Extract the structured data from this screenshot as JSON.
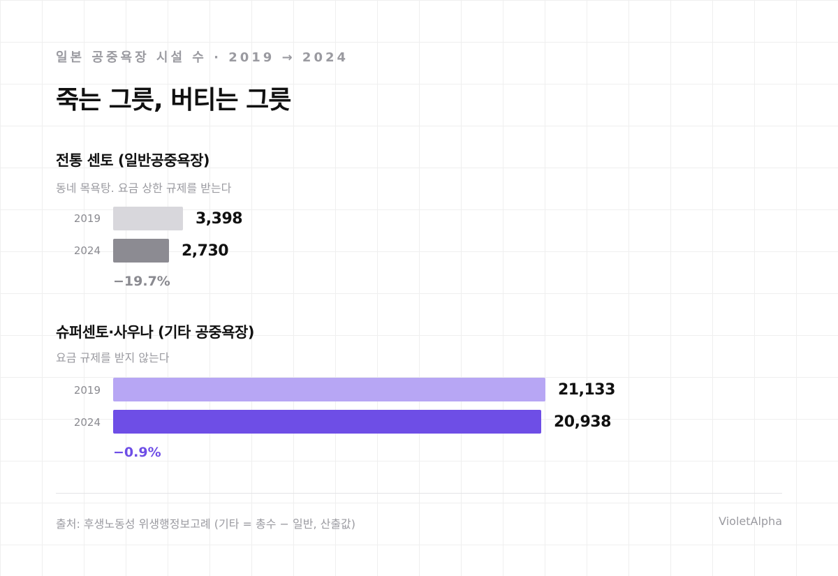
{
  "header": {
    "eyebrow": "일본 공중욕장 시설 수 · 2019 → 2024",
    "title": "죽는 그릇, 버티는 그릇"
  },
  "sections": [
    {
      "title": "전통 센토 (일반공중욕장)",
      "subtitle": "동네 목욕탕. 요금 상한 규제를 받는다",
      "change": "−19.7%",
      "change_color": "#8a8a90",
      "rows": [
        {
          "year": "2019",
          "value": 3398,
          "label": "3,398",
          "color": "#d8d7dc"
        },
        {
          "year": "2024",
          "value": 2730,
          "label": "2,730",
          "color": "#8c8b92"
        }
      ]
    },
    {
      "title": "슈퍼센토·사우나 (기타 공중욕장)",
      "subtitle": "요금 규제를 받지 않는다",
      "change": "−0.9%",
      "change_color": "#6e4ee6",
      "rows": [
        {
          "year": "2019",
          "value": 21133,
          "label": "21,133",
          "color": "#b7a6f4"
        },
        {
          "year": "2024",
          "value": 20938,
          "label": "20,938",
          "color": "#6e4ee6"
        }
      ]
    }
  ],
  "chart_data": {
    "type": "bar",
    "orientation": "horizontal",
    "title": "죽는 그릇, 버티는 그릇",
    "subtitle": "일본 공중욕장 시설 수 · 2019 → 2024",
    "grid": false,
    "series": [
      {
        "name": "전통 센토 (일반공중욕장)",
        "categories": [
          "2019",
          "2024"
        ],
        "values": [
          3398,
          2730
        ]
      },
      {
        "name": "슈퍼센토·사우나 (기타 공중욕장)",
        "categories": [
          "2019",
          "2024"
        ],
        "values": [
          21133,
          20938
        ]
      }
    ]
  },
  "footer": {
    "source": "출처: 후생노동성 위생행정보고례 (기타 = 총수 − 일반, 산출값)",
    "brand": "VioletAlpha"
  }
}
